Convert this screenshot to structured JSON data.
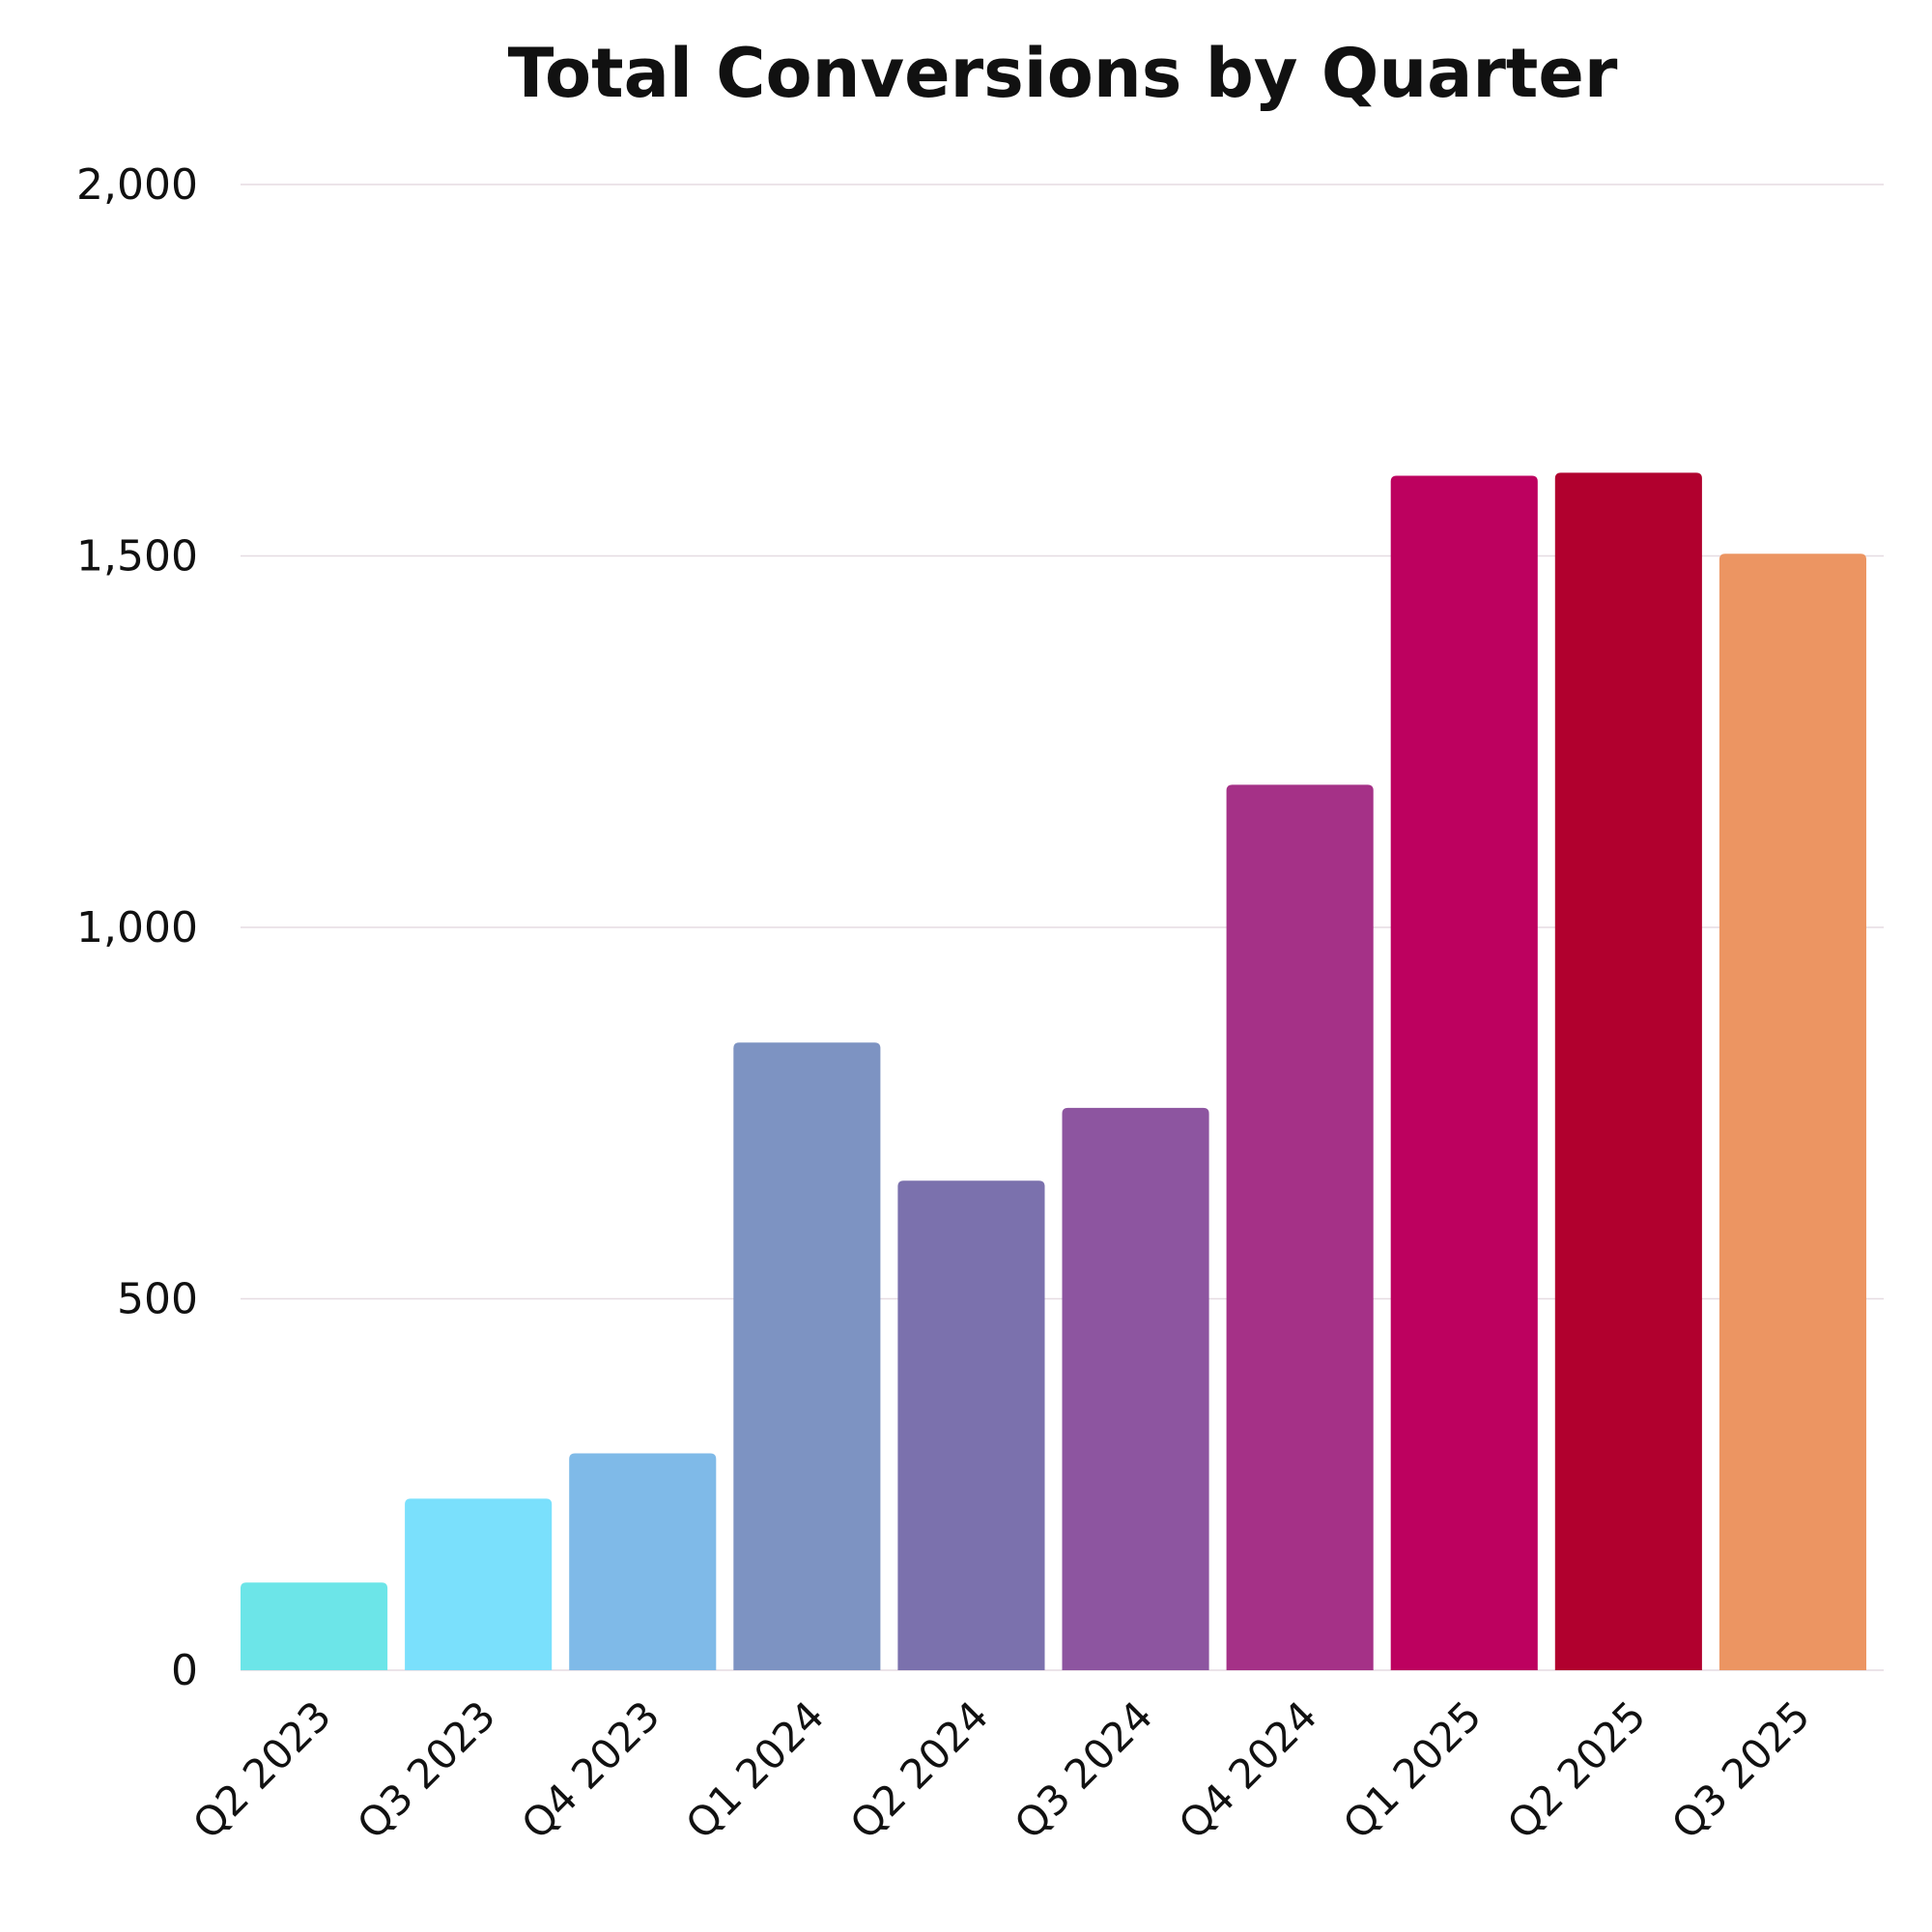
{
  "chart_data": {
    "type": "bar",
    "title": "Total Conversions by Quarter",
    "xlabel": "",
    "ylabel": "",
    "categories": [
      "Q2 2023",
      "Q3 2023",
      "Q4 2023",
      "Q1 2024",
      "Q2 2024",
      "Q3 2024",
      "Q4 2024",
      "Q1 2025",
      "Q2 2025",
      "Q3 2025"
    ],
    "values": [
      118,
      231,
      292,
      845,
      659,
      757,
      1192,
      1608,
      1612,
      1503
    ],
    "colors": [
      "#6ce5e8",
      "#7ae0fc",
      "#7fbae8",
      "#7d93c2",
      "#7b71ad",
      "#8d55a0",
      "#a53187",
      "#bd015f",
      "#b1002e",
      "#ec9562"
    ],
    "ylim": [
      0,
      2000
    ],
    "yticks": [
      0,
      500,
      1000,
      1500,
      2000
    ],
    "ytick_labels": [
      "0",
      "500",
      "1,000",
      "1,500",
      "2,000"
    ],
    "grid": true,
    "grid_color": "#e6dce2",
    "legend": "none"
  }
}
